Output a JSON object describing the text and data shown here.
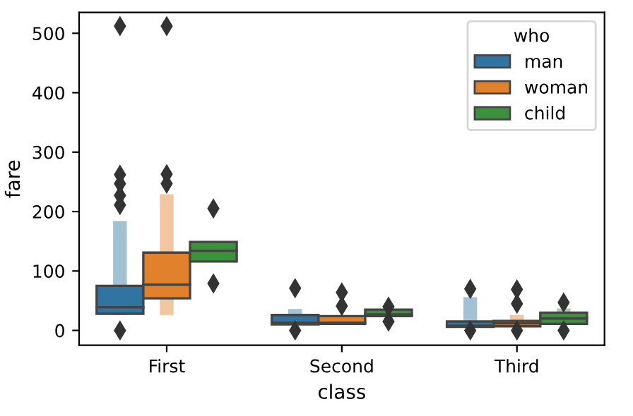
{
  "chart_data": {
    "type": "box",
    "xlabel": "class",
    "ylabel": "fare",
    "legend_title": "who",
    "legend": "top right",
    "grid": false,
    "marker": "diamond",
    "categories": [
      "First",
      "Second",
      "Third"
    ],
    "ylim": [
      -25,
      535
    ],
    "yticks": [
      0,
      100,
      200,
      300,
      400,
      500
    ],
    "series": [
      {
        "name": "man",
        "color": "#3274a1",
        "boxes": [
          {
            "low": 26,
            "q1": 28,
            "median": 39,
            "q3": 75,
            "high": 184,
            "outliers": [
              0,
              211,
              227,
              247,
              262,
              512
            ]
          },
          {
            "low": 10,
            "q1": 10,
            "median": 13,
            "q3": 26,
            "high": 36,
            "outliers": [
              0,
              71
            ]
          },
          {
            "low": 6,
            "q1": 6,
            "median": 8,
            "q3": 15,
            "high": 56,
            "outliers": [
              0,
              70
            ]
          }
        ]
      },
      {
        "name": "woman",
        "color": "#e1812c",
        "boxes": [
          {
            "low": 26,
            "q1": 54,
            "median": 77,
            "q3": 131,
            "high": 229,
            "outliers": [
              247,
              263,
              512
            ]
          },
          {
            "low": 11,
            "q1": 11,
            "median": 13,
            "q3": 24,
            "high": 26,
            "outliers": [
              41,
              64
            ]
          },
          {
            "low": 7,
            "q1": 7,
            "median": 12,
            "q3": 16,
            "high": 26,
            "outliers": [
              0,
              45,
              69
            ]
          }
        ]
      },
      {
        "name": "child",
        "color": "#3a923a",
        "boxes": [
          {
            "low": 116,
            "q1": 116,
            "median": 134,
            "q3": 149,
            "high": 149,
            "outliers": [
              79,
              205
            ]
          },
          {
            "low": 24,
            "q1": 24,
            "median": 27,
            "q3": 35,
            "high": 35,
            "outliers": [
              15,
              40
            ]
          },
          {
            "low": 11,
            "q1": 11,
            "median": 20,
            "q3": 30,
            "high": 37,
            "outliers": [
              0,
              47
            ]
          }
        ]
      }
    ]
  }
}
